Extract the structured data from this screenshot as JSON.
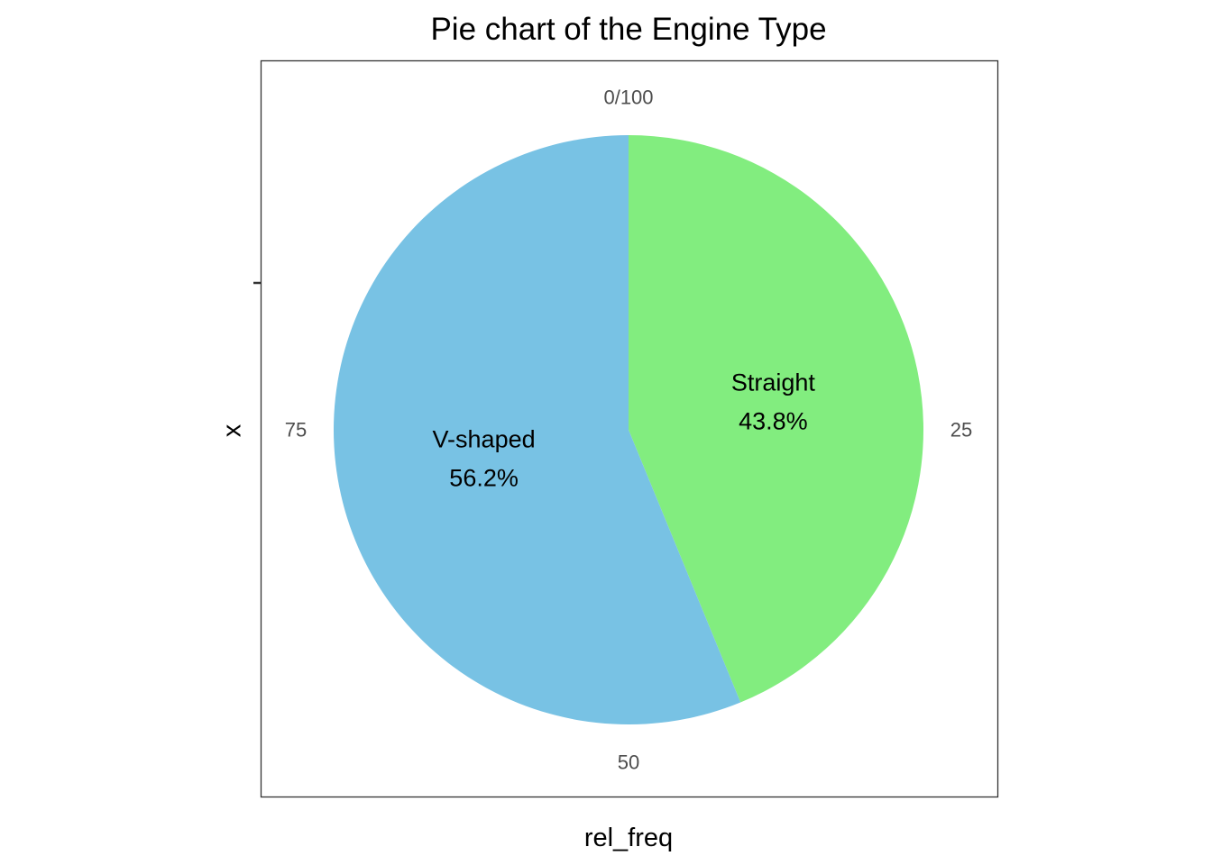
{
  "chart_data": {
    "type": "pie",
    "title": "Pie chart of the Engine Type",
    "xlabel": "rel_freq",
    "ylabel": "x",
    "theta_scale": [
      0,
      100
    ],
    "theta_ticks": [
      "0/100",
      "25",
      "50",
      "75"
    ],
    "theta_tick_values": [
      0,
      25,
      50,
      75
    ],
    "categories": [
      "Straight",
      "V-shaped"
    ],
    "values": [
      43.8,
      56.2
    ],
    "value_labels": [
      "43.8%",
      "56.2%"
    ],
    "colors": [
      "#82ed7f",
      "#78c2e4"
    ],
    "start_angle": "12 o'clock",
    "direction": "clockwise",
    "legend": "none",
    "grid": false
  }
}
